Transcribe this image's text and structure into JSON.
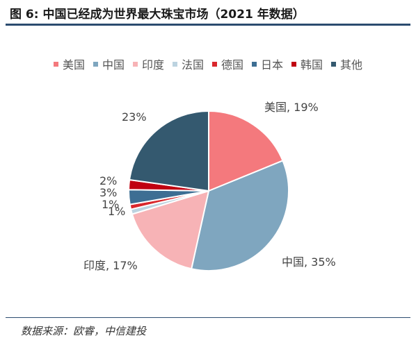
{
  "title": "图 6: 中国已经成为世界最大珠宝市场（2021 年数据）",
  "source": "数据来源：欧睿，中信建投",
  "chart_data": {
    "type": "pie",
    "start": "12 o'clock, clockwise",
    "slices": [
      {
        "label": "美国",
        "value": 19,
        "color": "#f4797d",
        "data_label": "美国, 19%"
      },
      {
        "label": "中国",
        "value": 35,
        "color": "#7fa6bf",
        "data_label": "中国, 35%"
      },
      {
        "label": "印度",
        "value": 17,
        "color": "#f7b3b6",
        "data_label": "印度, 17%"
      },
      {
        "label": "法国",
        "value": 1,
        "color": "#bcd3e0",
        "data_label": "1%"
      },
      {
        "label": "德国",
        "value": 1,
        "color": "#d9272c",
        "data_label": "1%"
      },
      {
        "label": "日本",
        "value": 3,
        "color": "#3d6e93",
        "data_label": "3%"
      },
      {
        "label": "韩国",
        "value": 2,
        "color": "#c00010",
        "data_label": "2%"
      },
      {
        "label": "其他",
        "value": 23,
        "color": "#34596f",
        "data_label": "23%"
      }
    ]
  }
}
